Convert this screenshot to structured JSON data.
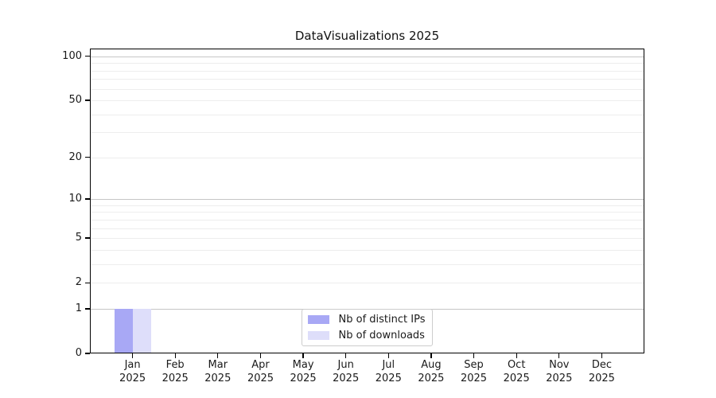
{
  "chart_data": {
    "type": "bar",
    "title": "DataVisualizations 2025",
    "categories": [
      {
        "label": "Jan",
        "sub": "2025"
      },
      {
        "label": "Feb",
        "sub": "2025"
      },
      {
        "label": "Mar",
        "sub": "2025"
      },
      {
        "label": "Apr",
        "sub": "2025"
      },
      {
        "label": "May",
        "sub": "2025"
      },
      {
        "label": "Jun",
        "sub": "2025"
      },
      {
        "label": "Jul",
        "sub": "2025"
      },
      {
        "label": "Aug",
        "sub": "2025"
      },
      {
        "label": "Sep",
        "sub": "2025"
      },
      {
        "label": "Oct",
        "sub": "2025"
      },
      {
        "label": "Nov",
        "sub": "2025"
      },
      {
        "label": "Dec",
        "sub": "2025"
      }
    ],
    "series": [
      {
        "name": "Nb of distinct IPs",
        "color": "#a8a8f5",
        "values": [
          1,
          0,
          0,
          0,
          0,
          0,
          0,
          0,
          0,
          0,
          0,
          0
        ]
      },
      {
        "name": "Nb of downloads",
        "color": "#dedefa",
        "values": [
          1,
          0,
          0,
          0,
          0,
          0,
          0,
          0,
          0,
          0,
          0,
          0
        ]
      }
    ],
    "y_scale": "log1p",
    "y_max": 113,
    "y_ticks": [
      0,
      1,
      2,
      5,
      10,
      20,
      50,
      100
    ],
    "gridlines": {
      "dark": [
        1,
        10,
        100
      ],
      "light": [
        2,
        3,
        4,
        5,
        6,
        7,
        8,
        9,
        20,
        30,
        40,
        50,
        60,
        70,
        80,
        90
      ]
    },
    "legend": {
      "position": "lower center"
    },
    "xlabel": "",
    "ylabel": ""
  },
  "colors": {
    "background": "#ffffff",
    "axis": "#000000",
    "grid_dark": "#c6c6c6",
    "grid_light": "#ededed",
    "text": "#1a1a1a"
  }
}
